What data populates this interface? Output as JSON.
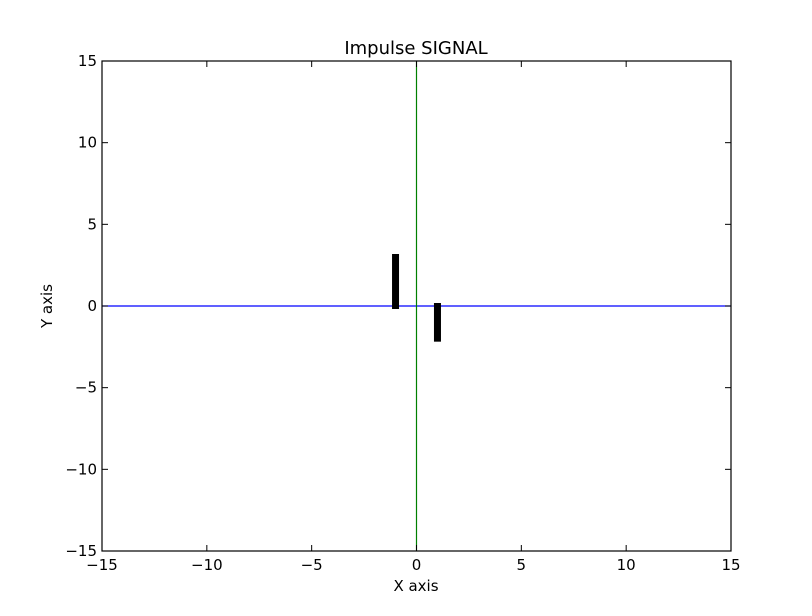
{
  "chart_data": {
    "type": "bar",
    "title": "Impulse SIGNAL",
    "xlabel": "X axis",
    "ylabel": "Y axis",
    "xlim": [
      -15,
      15
    ],
    "ylim": [
      -15,
      15
    ],
    "xticks": [
      -15,
      -10,
      -5,
      0,
      5,
      10,
      15
    ],
    "yticks": [
      -15,
      -10,
      -5,
      0,
      5,
      10,
      15
    ],
    "grid": false,
    "x": [
      -1,
      1
    ],
    "values": [
      3,
      -2
    ],
    "bar_color": "#000000",
    "reference_lines": {
      "horizontal_y": 0,
      "horizontal_color": "#0000ff",
      "vertical_x": 0,
      "vertical_color": "#008000"
    }
  }
}
